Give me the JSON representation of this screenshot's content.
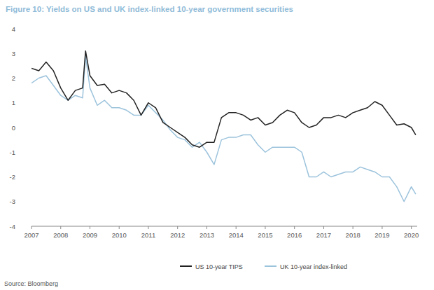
{
  "chart_data": {
    "type": "line",
    "title": "Figure 10: Yields on US and UK index-linked 10-year government securities",
    "source": "Source: Bloomberg",
    "x": [
      2007,
      2007.25,
      2007.5,
      2007.75,
      2008,
      2008.25,
      2008.5,
      2008.75,
      2008.85,
      2009,
      2009.25,
      2009.5,
      2009.75,
      2010,
      2010.25,
      2010.5,
      2010.75,
      2011,
      2011.25,
      2011.5,
      2011.75,
      2012,
      2012.25,
      2012.5,
      2012.75,
      2013,
      2013.25,
      2013.5,
      2013.75,
      2014,
      2014.25,
      2014.5,
      2014.75,
      2015,
      2015.25,
      2015.5,
      2015.75,
      2016,
      2016.25,
      2016.5,
      2016.75,
      2017,
      2017.25,
      2017.5,
      2017.75,
      2018,
      2018.25,
      2018.5,
      2018.75,
      2019,
      2019.25,
      2019.5,
      2019.75,
      2020,
      2020.15
    ],
    "series": [
      {
        "name": "US 10-year TIPS",
        "color": "#222222",
        "values": [
          2.4,
          2.3,
          2.65,
          2.3,
          1.6,
          1.1,
          1.5,
          1.6,
          3.1,
          2.1,
          1.7,
          1.75,
          1.4,
          1.5,
          1.4,
          1.1,
          0.5,
          1.0,
          0.8,
          0.2,
          0.0,
          -0.2,
          -0.4,
          -0.7,
          -0.8,
          -0.6,
          -0.6,
          0.4,
          0.6,
          0.6,
          0.5,
          0.3,
          0.4,
          0.1,
          0.2,
          0.5,
          0.7,
          0.6,
          0.2,
          0.0,
          0.1,
          0.4,
          0.4,
          0.5,
          0.4,
          0.6,
          0.7,
          0.8,
          1.05,
          0.9,
          0.5,
          0.1,
          0.15,
          0.0,
          -0.3
        ]
      },
      {
        "name": "UK 10-year index-linked",
        "color": "#9cc3dc",
        "values": [
          1.8,
          2.0,
          2.1,
          1.7,
          1.3,
          1.1,
          1.3,
          1.2,
          2.9,
          1.6,
          0.9,
          1.1,
          0.8,
          0.8,
          0.7,
          0.5,
          0.5,
          0.9,
          0.6,
          0.3,
          -0.1,
          -0.4,
          -0.5,
          -0.8,
          -0.6,
          -1.0,
          -1.5,
          -0.5,
          -0.4,
          -0.4,
          -0.3,
          -0.3,
          -0.7,
          -1.0,
          -0.8,
          -0.8,
          -0.8,
          -0.8,
          -1.0,
          -2.0,
          -2.0,
          -1.8,
          -2.0,
          -1.9,
          -1.8,
          -1.8,
          -1.6,
          -1.7,
          -1.8,
          -2.0,
          -2.0,
          -2.4,
          -3.0,
          -2.4,
          -2.7
        ]
      }
    ],
    "xlim": [
      2007,
      2020.2
    ],
    "xticks": [
      2007,
      2008,
      2009,
      2010,
      2011,
      2012,
      2013,
      2014,
      2015,
      2016,
      2017,
      2018,
      2019,
      2020
    ],
    "ylim": [
      -4,
      4
    ],
    "yticks": [
      4,
      3,
      2,
      1,
      0,
      -1,
      -2,
      -3,
      -4
    ],
    "grid": false,
    "legend": "bottom"
  }
}
